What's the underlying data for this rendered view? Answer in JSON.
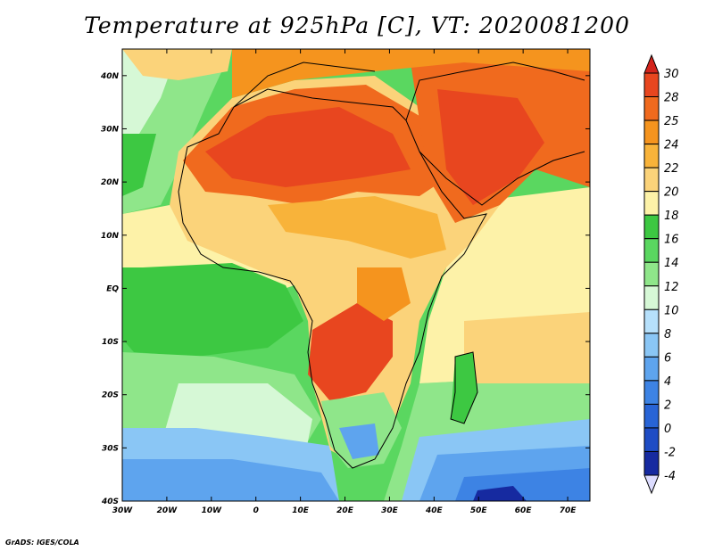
{
  "title": "Temperature at 925hPa [C], VT: 2020081200",
  "credit": "GrADS: IGES/COLA",
  "map": {
    "lon_range": [
      -30,
      75
    ],
    "lat_range": [
      -40,
      45
    ],
    "lat_ticks": [
      {
        "value": 40,
        "label": "40N"
      },
      {
        "value": 30,
        "label": "30N"
      },
      {
        "value": 20,
        "label": "20N"
      },
      {
        "value": 10,
        "label": "10N"
      },
      {
        "value": 0,
        "label": "EQ"
      },
      {
        "value": -10,
        "label": "10S"
      },
      {
        "value": -20,
        "label": "20S"
      },
      {
        "value": -30,
        "label": "30S"
      },
      {
        "value": -40,
        "label": "40S"
      }
    ],
    "lon_ticks": [
      {
        "value": -30,
        "label": "30W"
      },
      {
        "value": -20,
        "label": "20W"
      },
      {
        "value": -10,
        "label": "10W"
      },
      {
        "value": 0,
        "label": "0"
      },
      {
        "value": 10,
        "label": "10E"
      },
      {
        "value": 20,
        "label": "20E"
      },
      {
        "value": 30,
        "label": "30E"
      },
      {
        "value": 40,
        "label": "40E"
      },
      {
        "value": 50,
        "label": "50E"
      },
      {
        "value": 60,
        "label": "60E"
      },
      {
        "value": 70,
        "label": "70E"
      }
    ]
  },
  "colorbar": {
    "labels": [
      "30",
      "28",
      "25",
      "24",
      "22",
      "20",
      "18",
      "16",
      "14",
      "12",
      "10",
      "8",
      "6",
      "4",
      "2",
      "0",
      "-2",
      "-4"
    ],
    "top_cap_color": "#d3241c",
    "bottom_cap_color": "#dcdcff",
    "colors": [
      "#e8461f",
      "#f06a1e",
      "#f5941e",
      "#f8b33a",
      "#fbd37a",
      "#fdf2a8",
      "#3dc842",
      "#5ad760",
      "#8fe68a",
      "#d6f8d6",
      "#b6e0fb",
      "#8ac6f5",
      "#5ea4ee",
      "#3d83e4",
      "#2864d6",
      "#1e4cc4",
      "#162aa0",
      "#0a1a6e"
    ]
  }
}
